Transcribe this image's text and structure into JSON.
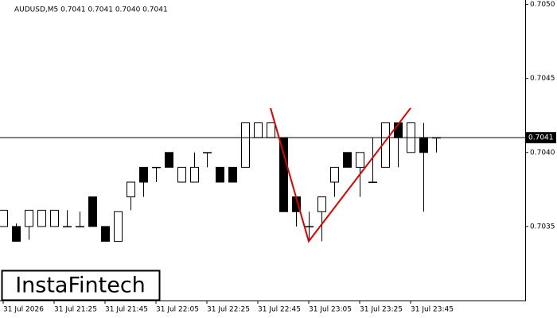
{
  "chart_data": {
    "type": "candlestick",
    "title": "AUDUSD,M5  0.7041 0.7041 0.7040 0.7041",
    "brand": "InstaFintech",
    "categories": [
      "31 Jul 2026",
      null,
      null,
      null,
      "31 Jul 21:25",
      null,
      null,
      null,
      "31 Jul 21:45",
      null,
      null,
      null,
      "31 Jul 22:05",
      null,
      null,
      null,
      "31 Jul 22:25",
      null,
      null,
      null,
      "31 Jul 22:45",
      null,
      null,
      null,
      "31 Jul 23:05",
      null,
      null,
      null,
      "31 Jul 23:25",
      null,
      null,
      null,
      "31 Jul 23:45",
      null,
      null
    ],
    "open": [
      0.7035,
      0.7035,
      0.7035,
      0.7035,
      0.7035,
      0.7035,
      0.7035,
      0.7037,
      0.7035,
      0.7034,
      0.7037,
      0.7039,
      0.7039,
      0.704,
      0.7038,
      0.7038,
      0.704,
      0.7039,
      0.7039,
      0.7039,
      0.7041,
      0.7041,
      0.7041,
      0.7037,
      0.7035,
      0.7036,
      0.7038,
      0.704,
      0.7039,
      0.7038,
      0.7039,
      0.7042,
      0.704,
      0.7041,
      0.7041
    ],
    "high": [
      0.70361,
      0.70352,
      0.70361,
      0.70361,
      0.70361,
      0.70361,
      0.7036,
      0.7037,
      0.7035,
      0.7036,
      0.7038,
      0.7039,
      0.7039,
      0.704,
      0.7039,
      0.704,
      0.704,
      0.7039,
      0.7039,
      0.7042,
      0.7042,
      0.7042,
      0.7041,
      0.7037,
      0.7036,
      0.7037,
      0.7039,
      0.704,
      0.704,
      0.7041,
      0.7042,
      0.7042,
      0.7042,
      0.7042,
      0.7041
    ],
    "low": [
      0.7035,
      0.7034,
      0.70341,
      0.7035,
      0.7035,
      0.7035,
      0.7035,
      0.7035,
      0.7034,
      0.7034,
      0.70361,
      0.7037,
      0.7038,
      0.7039,
      0.7038,
      0.7038,
      0.7039,
      0.7038,
      0.7038,
      0.7039,
      0.7041,
      0.7041,
      0.7036,
      0.7035,
      0.7034,
      0.7034,
      0.7037,
      0.7039,
      0.7037,
      0.7038,
      0.7039,
      0.7039,
      0.704,
      0.7036,
      0.704
    ],
    "close": [
      0.70361,
      0.7034,
      0.70361,
      0.70361,
      0.70361,
      0.7035,
      0.7035,
      0.7035,
      0.7034,
      0.7036,
      0.7038,
      0.7038,
      0.7039,
      0.7039,
      0.7039,
      0.7039,
      0.704,
      0.7038,
      0.7038,
      0.7042,
      0.7042,
      0.7042,
      0.7036,
      0.7036,
      0.7035,
      0.7037,
      0.7039,
      0.7039,
      0.704,
      0.7038,
      0.7042,
      0.7041,
      0.7042,
      0.704,
      0.7041
    ],
    "up_color": "#ffffff",
    "down_color": "#000000",
    "last_price": 0.7041,
    "pattern": {
      "color": "#e00000",
      "x": [
        21,
        24,
        32
      ],
      "values": [
        0.7043,
        0.7034,
        0.7043
      ]
    },
    "ylim": [
      0.703,
      0.70503
    ],
    "yticks": [
      {
        "value": 0.705,
        "label": "0.7050"
      },
      0.7045,
      {
        "value": 0.704,
        "label": "0.7040"
      },
      0.7035
    ]
  }
}
